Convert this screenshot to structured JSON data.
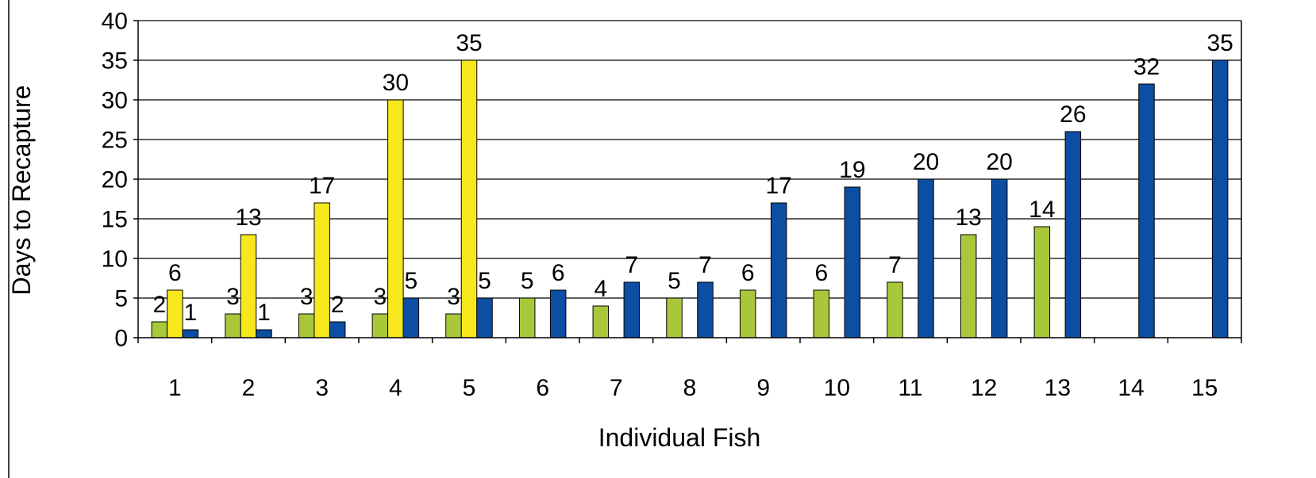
{
  "chart_data": {
    "type": "bar",
    "title": "",
    "xlabel": "Individual Fish",
    "ylabel": "Days to Recapture",
    "ylim": [
      0,
      40
    ],
    "yticks": [
      0,
      5,
      10,
      15,
      20,
      25,
      30,
      35,
      40
    ],
    "grid": true,
    "legend": "none",
    "categories": [
      "1",
      "2",
      "3",
      "4",
      "5",
      "6",
      "7",
      "8",
      "9",
      "10",
      "11",
      "12",
      "13",
      "14",
      "15"
    ],
    "series": [
      {
        "color": "#a8c83a",
        "values": [
          2,
          3,
          3,
          3,
          3,
          5,
          4,
          5,
          6,
          6,
          7,
          13,
          14,
          null,
          null
        ]
      },
      {
        "color": "#f7e81e",
        "values": [
          6,
          13,
          17,
          30,
          35,
          null,
          null,
          null,
          null,
          null,
          null,
          null,
          null,
          null,
          null
        ]
      },
      {
        "color": "#0b4ea2",
        "values": [
          1,
          1,
          2,
          5,
          5,
          6,
          7,
          7,
          17,
          19,
          20,
          20,
          26,
          32,
          35
        ]
      }
    ]
  }
}
